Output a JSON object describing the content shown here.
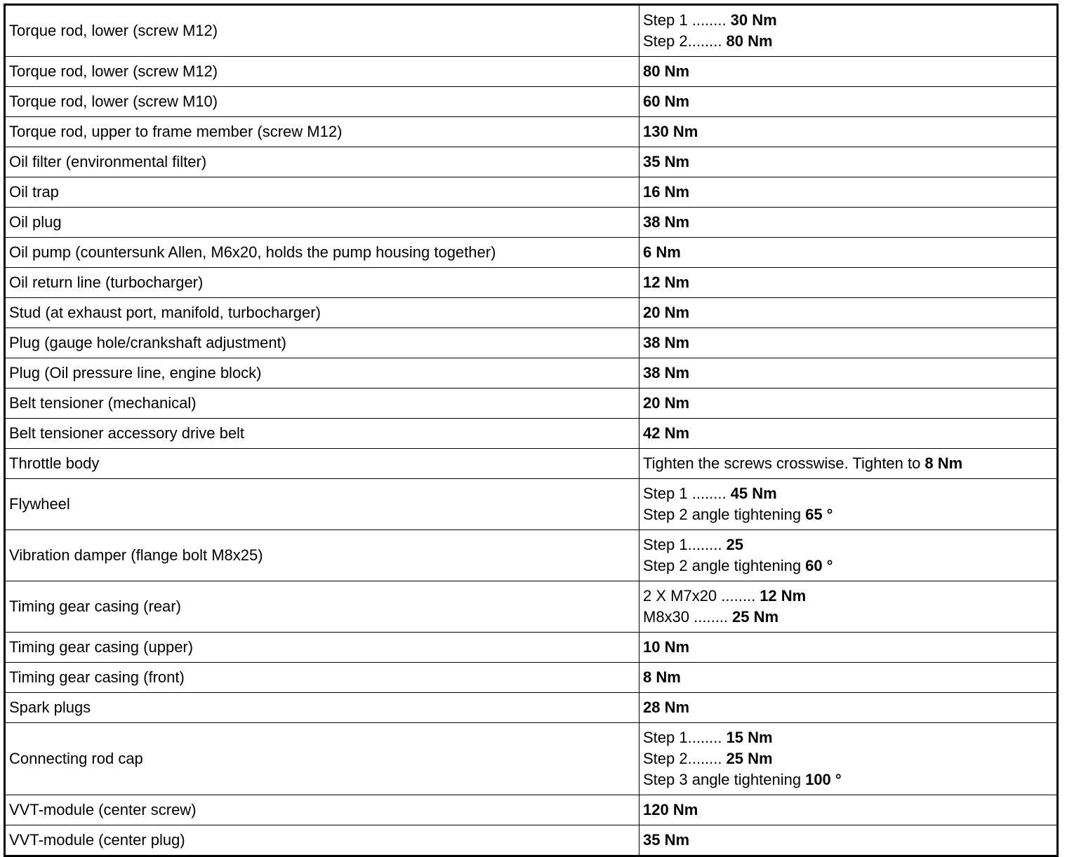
{
  "table": {
    "rows": [
      {
        "part": "Torque rod, lower (screw M12)",
        "spec": [
          {
            "label": "Step 1 ........",
            "value": "30 Nm"
          },
          {
            "label": "Step 2........",
            "value": "80 Nm"
          }
        ]
      },
      {
        "part": "Torque rod, lower (screw M12)",
        "spec": [
          {
            "value": "80 Nm"
          }
        ]
      },
      {
        "part": "Torque rod, lower (screw M10)",
        "spec": [
          {
            "value": "60 Nm"
          }
        ]
      },
      {
        "part": "Torque rod, upper to frame member (screw M12)",
        "spec": [
          {
            "value": "130 Nm"
          }
        ]
      },
      {
        "part": "Oil filter (environmental filter)",
        "spec": [
          {
            "value": "35 Nm"
          }
        ]
      },
      {
        "part": "Oil trap",
        "spec": [
          {
            "value": "16 Nm"
          }
        ]
      },
      {
        "part": "Oil plug",
        "spec": [
          {
            "value": "38 Nm"
          }
        ]
      },
      {
        "part": "Oil pump (countersunk Allen, M6x20, holds the pump housing together)",
        "spec": [
          {
            "value": "6 Nm"
          }
        ]
      },
      {
        "part": "Oil return line (turbocharger)",
        "spec": [
          {
            "value": "12 Nm"
          }
        ]
      },
      {
        "part": "Stud (at exhaust port, manifold, turbocharger)",
        "spec": [
          {
            "value": "20 Nm"
          }
        ]
      },
      {
        "part": "Plug (gauge hole/crankshaft adjustment)",
        "spec": [
          {
            "value": "38 Nm"
          }
        ]
      },
      {
        "part": "Plug (Oil pressure line, engine block)",
        "spec": [
          {
            "value": "38 Nm"
          }
        ]
      },
      {
        "part": "Belt tensioner (mechanical)",
        "spec": [
          {
            "value": "20 Nm"
          }
        ]
      },
      {
        "part": "Belt tensioner accessory drive belt",
        "spec": [
          {
            "value": "42 Nm"
          }
        ]
      },
      {
        "part": "Throttle body",
        "spec": [
          {
            "label": "Tighten the screws crosswise. Tighten to",
            "value": "8 Nm"
          }
        ]
      },
      {
        "part": "Flywheel",
        "spec": [
          {
            "label": "Step 1 ........",
            "value": "45 Nm"
          },
          {
            "label": "Step 2 angle tightening",
            "value": "65 °"
          }
        ]
      },
      {
        "part": "Vibration damper (flange bolt M8x25)",
        "spec": [
          {
            "label": "Step 1........",
            "value": "25"
          },
          {
            "label": "Step 2 angle tightening",
            "value": "60 °"
          }
        ]
      },
      {
        "part": "Timing gear casing (rear)",
        "spec": [
          {
            "label": "2 X M7x20 ........",
            "value": "12 Nm"
          },
          {
            "label": "M8x30 ........",
            "value": "25 Nm"
          }
        ]
      },
      {
        "part": "Timing gear casing (upper)",
        "spec": [
          {
            "value": "10 Nm"
          }
        ]
      },
      {
        "part": "Timing gear casing (front)",
        "spec": [
          {
            "value": "8 Nm"
          }
        ]
      },
      {
        "part": "Spark plugs",
        "spec": [
          {
            "value": "28 Nm"
          }
        ]
      },
      {
        "part": "Connecting rod cap",
        "spec": [
          {
            "label": "Step 1........",
            "value": "15 Nm"
          },
          {
            "label": "Step 2........",
            "value": "25 Nm"
          },
          {
            "label": "Step 3 angle tightening",
            "value": "100 °"
          }
        ]
      },
      {
        "part": "VVT-module (center screw)",
        "spec": [
          {
            "value": "120 Nm"
          }
        ]
      },
      {
        "part": "VVT-module (center plug)",
        "spec": [
          {
            "value": "35 Nm"
          }
        ]
      }
    ]
  }
}
